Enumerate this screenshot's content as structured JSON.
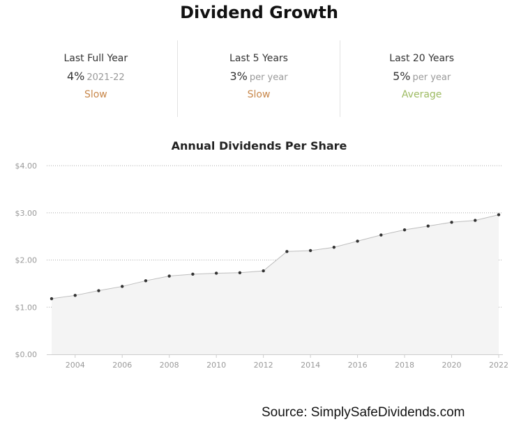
{
  "title": "Dividend Growth",
  "stats": [
    {
      "label": "Last Full Year",
      "value": "4%",
      "sub": "2021-22",
      "rating": "Slow",
      "rating_color": "#c8874a"
    },
    {
      "label": "Last 5 Years",
      "value": "3%",
      "sub": "per year",
      "rating": "Slow",
      "rating_color": "#c8874a"
    },
    {
      "label": "Last 20 Years",
      "value": "5%",
      "sub": "per year",
      "rating": "Average",
      "rating_color": "#9dbb62"
    }
  ],
  "chart_data": {
    "type": "area",
    "title": "Annual Dividends Per Share",
    "x": [
      2003,
      2004,
      2005,
      2006,
      2007,
      2008,
      2009,
      2010,
      2011,
      2012,
      2013,
      2014,
      2015,
      2016,
      2017,
      2018,
      2019,
      2020,
      2021,
      2022
    ],
    "y": [
      1.18,
      1.25,
      1.35,
      1.44,
      1.56,
      1.66,
      1.7,
      1.72,
      1.73,
      1.77,
      2.18,
      2.2,
      2.27,
      2.4,
      2.53,
      2.64,
      2.72,
      2.8,
      2.84,
      2.96
    ],
    "xticks": [
      "2004",
      "2006",
      "2008",
      "2010",
      "2012",
      "2014",
      "2016",
      "2018",
      "2020",
      "2022"
    ],
    "yticks": [
      "$0.00",
      "$1.00",
      "$2.00",
      "$3.00",
      "$4.00"
    ],
    "ylim": [
      0,
      4
    ],
    "grid": true,
    "legend": false,
    "colors": {
      "fill": "#f4f4f4",
      "line": "#bdbdbd",
      "marker": "#333333"
    }
  },
  "source": "Source: SimplySafeDividends.com"
}
